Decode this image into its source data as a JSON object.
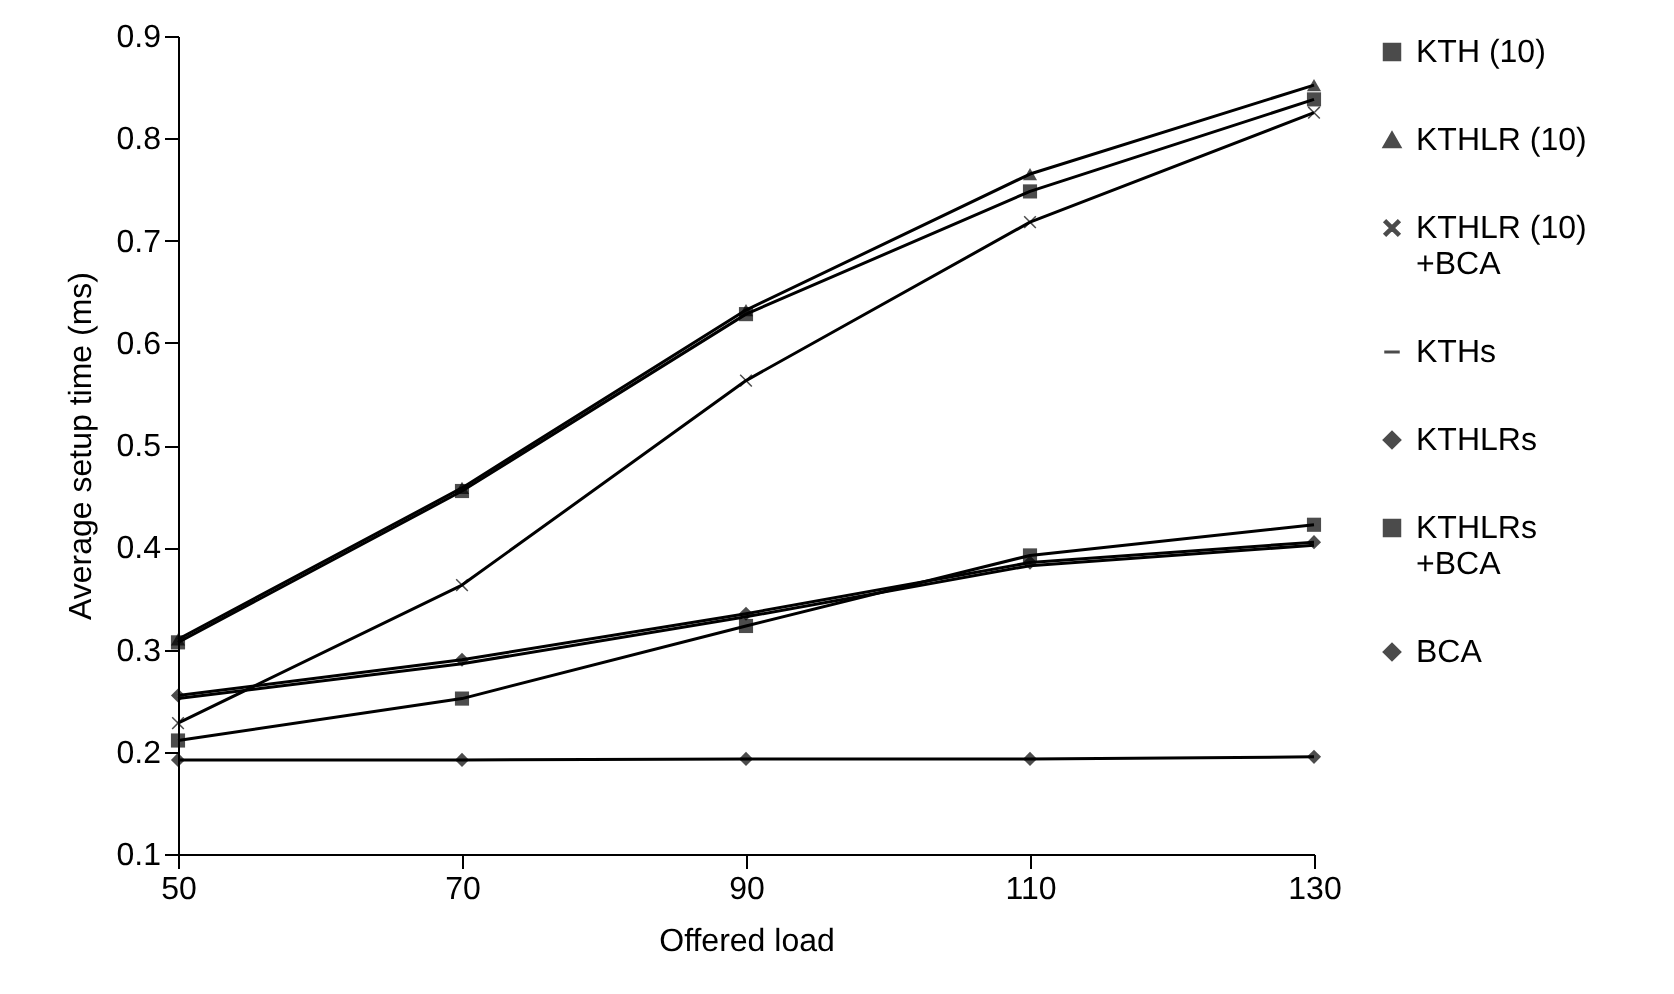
{
  "chart_data": {
    "type": "line",
    "xlabel": "Offered load",
    "ylabel": "Average setup time (ms)",
    "x": [
      50,
      70,
      90,
      110,
      130
    ],
    "xlim": [
      50,
      130
    ],
    "xticks": [
      50,
      70,
      90,
      110,
      130
    ],
    "ylim": [
      0.1,
      0.9
    ],
    "yticks": [
      0.1,
      0.2,
      0.3,
      0.4,
      0.5,
      0.6,
      0.7,
      0.8,
      0.9
    ],
    "legend": "right",
    "line_style": "solid",
    "grid": false,
    "series": [
      {
        "name": "KTH (10)",
        "color": "#000000",
        "marker": "square",
        "values": [
          0.307,
          0.455,
          0.628,
          0.748,
          0.838
        ]
      },
      {
        "name": "KTHLR (10)",
        "color": "#000000",
        "marker": "triangle",
        "values": [
          0.31,
          0.458,
          0.632,
          0.765,
          0.852
        ]
      },
      {
        "name": "KTHLR (10) +BCA",
        "color": "#000000",
        "marker": "cross",
        "values": [
          0.228,
          0.363,
          0.563,
          0.718,
          0.825
        ]
      },
      {
        "name": "KTHs",
        "color": "#000000",
        "marker": "none",
        "values": [
          0.252,
          0.286,
          0.332,
          0.382,
          0.402
        ]
      },
      {
        "name": "KTHLRs",
        "color": "#000000",
        "marker": "diamond",
        "values": [
          0.255,
          0.29,
          0.335,
          0.385,
          0.405
        ]
      },
      {
        "name": "KTHLRs +BCA",
        "color": "#000000",
        "marker": "square",
        "values": [
          0.211,
          0.252,
          0.323,
          0.392,
          0.422
        ]
      },
      {
        "name": "BCA",
        "color": "#000000",
        "marker": "diamond",
        "values": [
          0.192,
          0.192,
          0.193,
          0.193,
          0.195
        ]
      }
    ]
  }
}
